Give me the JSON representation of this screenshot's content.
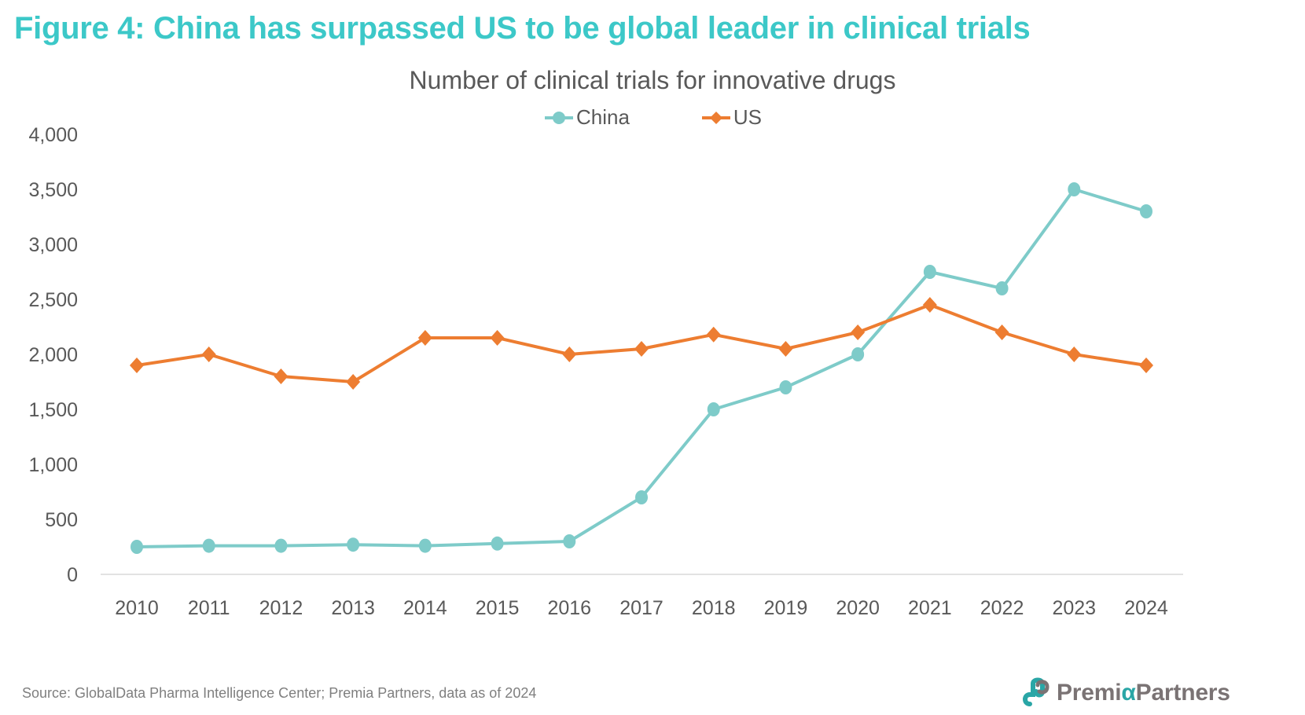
{
  "figure_title": "Figure 4: China has surpassed US to be global leader in clinical trials",
  "source_note": "Source: GlobalData Pharma Intelligence Center; Premia Partners, data as of 2024",
  "logo": {
    "text_before": "Premi",
    "alpha": "α",
    "text_after": "Partners",
    "icon": "premia-logo-icon"
  },
  "colors": {
    "title": "#3cc8c8",
    "china": "#7ecbc9",
    "us": "#ed7d31",
    "axis_text": "#595959"
  },
  "chart_data": {
    "type": "line",
    "title": "Number of clinical trials for innovative drugs",
    "xlabel": "",
    "ylabel": "",
    "categories": [
      "2010",
      "2011",
      "2012",
      "2013",
      "2014",
      "2015",
      "2016",
      "2017",
      "2018",
      "2019",
      "2020",
      "2021",
      "2022",
      "2023",
      "2024"
    ],
    "series": [
      {
        "name": "China",
        "marker": "circle",
        "color": "#7ecbc9",
        "values": [
          250,
          260,
          260,
          270,
          260,
          280,
          300,
          700,
          1500,
          1700,
          2000,
          2750,
          2600,
          3500,
          3300
        ]
      },
      {
        "name": "US",
        "marker": "diamond",
        "color": "#ed7d31",
        "values": [
          1900,
          2000,
          1800,
          1750,
          2150,
          2150,
          2000,
          2050,
          2180,
          2050,
          2200,
          2450,
          2200,
          2000,
          1900
        ]
      }
    ],
    "ylim": [
      0,
      4000
    ],
    "yticks": [
      0,
      500,
      1000,
      1500,
      2000,
      2500,
      3000,
      3500,
      4000
    ],
    "ytick_labels": [
      "0",
      "500",
      "1,000",
      "1,500",
      "2,000",
      "2,500",
      "3,000",
      "3,500",
      "4,000"
    ],
    "grid": false,
    "legend_position": "top-center"
  }
}
